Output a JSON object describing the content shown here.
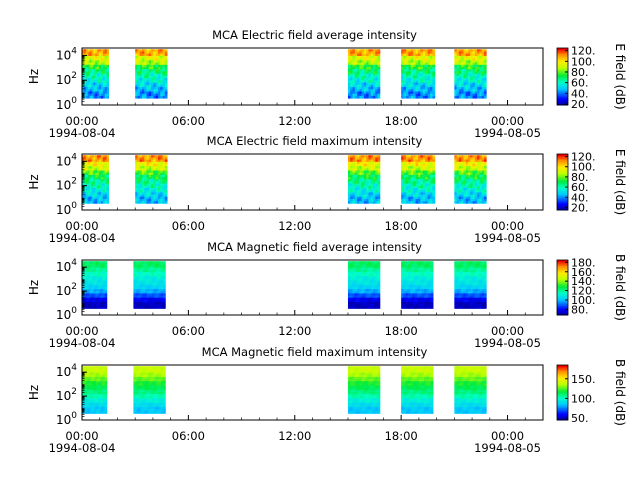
{
  "chart_data": [
    {
      "type": "heatmap",
      "title": "MCA  Electric field average intensity",
      "ylabel": "Hz",
      "y_scale": "log",
      "y_ticks": [
        {
          "value": 1,
          "base": "10",
          "exp": "0"
        },
        {
          "value": 100,
          "base": "10",
          "exp": "2"
        },
        {
          "value": 10000,
          "base": "10",
          "exp": "4"
        }
      ],
      "x_ticks": [
        {
          "label": "00:00",
          "date": "1994-08-04",
          "hour": 0
        },
        {
          "label": "06:00",
          "date": "",
          "hour": 6
        },
        {
          "label": "12:00",
          "date": "",
          "hour": 12
        },
        {
          "label": "18:00",
          "date": "",
          "hour": 18
        },
        {
          "label": "00:00",
          "date": "1994-08-05",
          "hour": 24
        }
      ],
      "colorbar": {
        "label": "E field (dB)",
        "range": [
          18,
          125
        ],
        "ticks": [
          "20.",
          "40.",
          "60.",
          "80.",
          "100.",
          "120."
        ],
        "tick_values": [
          20,
          40,
          60,
          80,
          100,
          120
        ]
      },
      "data_blocks": [
        {
          "start_hour": 0.0,
          "end_hour": 1.5
        },
        {
          "start_hour": 3.0,
          "end_hour": 4.8
        },
        {
          "start_hour": 15.0,
          "end_hour": 16.8
        },
        {
          "start_hour": 18.0,
          "end_hour": 19.9
        },
        {
          "start_hour": 21.0,
          "end_hour": 22.8
        }
      ],
      "spectrum_profile_db": [
        110,
        95,
        88,
        75,
        68,
        62,
        58,
        52,
        48,
        42
      ]
    },
    {
      "type": "heatmap",
      "title": "MCA  Electric field maximum intensity",
      "ylabel": "Hz",
      "y_scale": "log",
      "y_ticks": [
        {
          "value": 1,
          "base": "10",
          "exp": "0"
        },
        {
          "value": 100,
          "base": "10",
          "exp": "2"
        },
        {
          "value": 10000,
          "base": "10",
          "exp": "4"
        }
      ],
      "x_ticks": [
        {
          "label": "00:00",
          "date": "1994-08-04",
          "hour": 0
        },
        {
          "label": "06:00",
          "date": "",
          "hour": 6
        },
        {
          "label": "12:00",
          "date": "",
          "hour": 12
        },
        {
          "label": "18:00",
          "date": "",
          "hour": 18
        },
        {
          "label": "00:00",
          "date": "1994-08-05",
          "hour": 24
        }
      ],
      "colorbar": {
        "label": "E field (dB)",
        "range": [
          15,
          125
        ],
        "ticks": [
          "20.",
          "40.",
          "60.",
          "80.",
          "100.",
          "120."
        ],
        "tick_values": [
          20,
          40,
          60,
          80,
          100,
          120
        ]
      },
      "data_blocks": [
        {
          "start_hour": 0.0,
          "end_hour": 1.5
        },
        {
          "start_hour": 3.0,
          "end_hour": 4.8
        },
        {
          "start_hour": 15.0,
          "end_hour": 16.8
        },
        {
          "start_hour": 18.0,
          "end_hour": 19.9
        },
        {
          "start_hour": 21.0,
          "end_hour": 22.8
        }
      ],
      "spectrum_profile_db": [
        112,
        98,
        90,
        78,
        70,
        64,
        60,
        55,
        50,
        45
      ]
    },
    {
      "type": "heatmap",
      "title": "MCA  Magnetic field average intensity",
      "ylabel": "Hz",
      "y_scale": "log",
      "y_ticks": [
        {
          "value": 1,
          "base": "10",
          "exp": "0"
        },
        {
          "value": 100,
          "base": "10",
          "exp": "2"
        },
        {
          "value": 10000,
          "base": "10",
          "exp": "4"
        }
      ],
      "x_ticks": [
        {
          "label": "00:00",
          "date": "1994-08-04",
          "hour": 0
        },
        {
          "label": "06:00",
          "date": "",
          "hour": 6
        },
        {
          "label": "12:00",
          "date": "",
          "hour": 12
        },
        {
          "label": "18:00",
          "date": "",
          "hour": 18
        },
        {
          "label": "00:00",
          "date": "1994-08-05",
          "hour": 24
        }
      ],
      "colorbar": {
        "label": "B field (dB)",
        "range": [
          68,
          185
        ],
        "ticks": [
          "80.",
          "100.",
          "120.",
          "140.",
          "160.",
          "180."
        ],
        "tick_values": [
          80,
          100,
          120,
          140,
          160,
          180
        ]
      },
      "data_blocks": [
        {
          "start_hour": 0.0,
          "end_hour": 1.4
        },
        {
          "start_hour": 2.9,
          "end_hour": 4.7
        },
        {
          "start_hour": 15.0,
          "end_hour": 16.8
        },
        {
          "start_hour": 18.0,
          "end_hour": 19.8
        },
        {
          "start_hour": 21.0,
          "end_hour": 22.8
        }
      ],
      "spectrum_profile_db": [
        125,
        120,
        115,
        110,
        108,
        104,
        98,
        88,
        78,
        72
      ]
    },
    {
      "type": "heatmap",
      "title": "MCA  Magnetic field maximum intensity",
      "ylabel": "Hz",
      "y_scale": "log",
      "y_ticks": [
        {
          "value": 1,
          "base": "10",
          "exp": "0"
        },
        {
          "value": 100,
          "base": "10",
          "exp": "2"
        },
        {
          "value": 10000,
          "base": "10",
          "exp": "4"
        }
      ],
      "x_ticks": [
        {
          "label": "00:00",
          "date": "1994-08-04",
          "hour": 0
        },
        {
          "label": "06:00",
          "date": "",
          "hour": 6
        },
        {
          "label": "12:00",
          "date": "",
          "hour": 12
        },
        {
          "label": "18:00",
          "date": "",
          "hour": 18
        },
        {
          "label": "00:00",
          "date": "1994-08-05",
          "hour": 24
        }
      ],
      "colorbar": {
        "label": "B field (dB)",
        "range": [
          45,
          185
        ],
        "ticks": [
          "50.",
          "100.",
          "150."
        ],
        "tick_values": [
          50,
          100,
          150
        ]
      },
      "data_blocks": [
        {
          "start_hour": 0.0,
          "end_hour": 1.4
        },
        {
          "start_hour": 2.9,
          "end_hour": 4.7
        },
        {
          "start_hour": 15.0,
          "end_hour": 16.8
        },
        {
          "start_hour": 18.0,
          "end_hour": 19.8
        },
        {
          "start_hour": 21.0,
          "end_hour": 22.8
        }
      ],
      "spectrum_profile_db": [
        140,
        135,
        128,
        120,
        115,
        110,
        104,
        96,
        90,
        85
      ]
    }
  ]
}
